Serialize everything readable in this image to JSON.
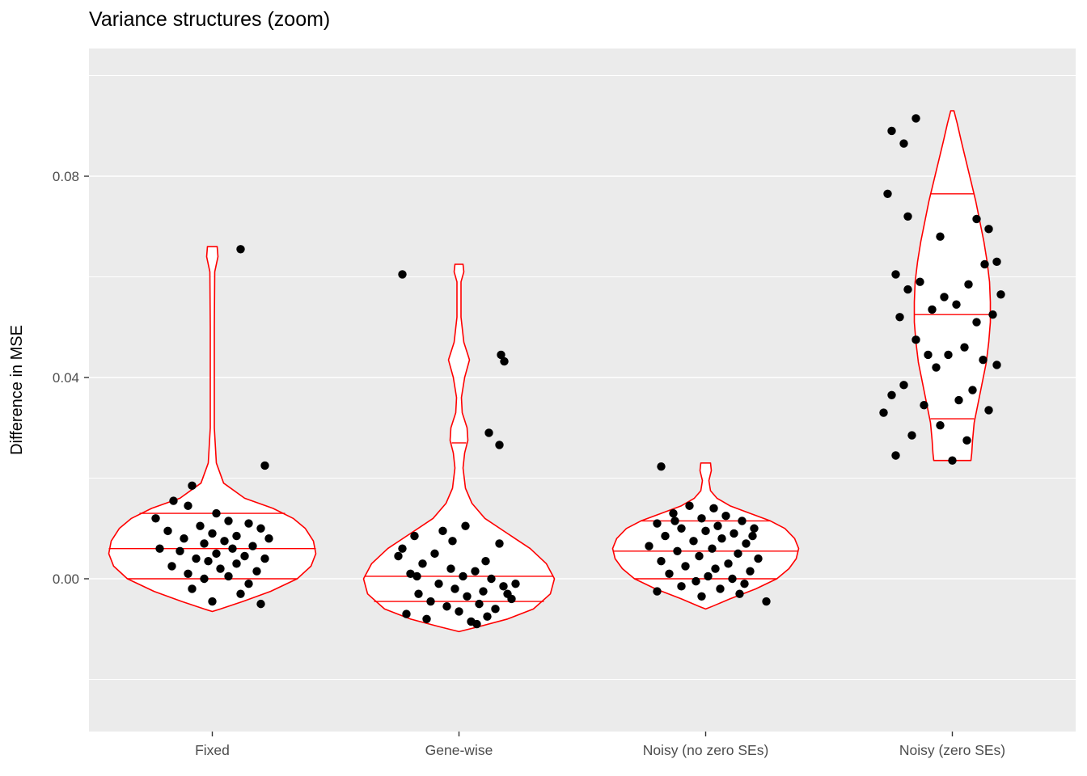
{
  "title": "Variance structures (zoom)",
  "colors": {
    "panel_bg": "#EBEBEB",
    "grid": "#FFFFFF",
    "violin_stroke": "#FF0000",
    "violin_fill": "#FFFFFF",
    "point": "#000000",
    "axis_text": "#4D4D4D",
    "tick_mark": "#333333",
    "title_text": "#000000"
  },
  "chart_data": {
    "type": "violin+jitter",
    "title": "Variance structures (zoom)",
    "xlabel": "",
    "ylabel": "Difference in MSE",
    "ylim": [
      -0.03,
      0.105
    ],
    "grid": true,
    "legend": "none",
    "categories": [
      "Fixed",
      "Gene-wise",
      "Noisy (no zero SEs)",
      "Noisy (zero SEs)"
    ],
    "y_major": [
      {
        "value": 0.0,
        "label": "0.00"
      },
      {
        "value": 0.04,
        "label": "0.04"
      },
      {
        "value": 0.08,
        "label": "0.08"
      }
    ],
    "y_minor": [
      -0.02,
      0.02,
      0.06,
      0.1
    ],
    "groups": [
      {
        "name": "Fixed",
        "slug": "fixed",
        "violin": [
          [
            0.066,
            6
          ],
          [
            0.064,
            7
          ],
          [
            0.061,
            3
          ],
          [
            0.05,
            2.5
          ],
          [
            0.03,
            2.5
          ],
          [
            0.023,
            5
          ],
          [
            0.019,
            14
          ],
          [
            0.016,
            40
          ],
          [
            0.014,
            75
          ],
          [
            0.012,
            100
          ],
          [
            0.01,
            115
          ],
          [
            0.0075,
            125
          ],
          [
            0.005,
            128
          ],
          [
            0.0025,
            122
          ],
          [
            0.0,
            105
          ],
          [
            -0.0025,
            72
          ],
          [
            -0.0045,
            38
          ],
          [
            -0.006,
            10
          ],
          [
            -0.0065,
            0
          ]
        ],
        "quantiles": [
          [
            0.013,
            90
          ],
          [
            0.006,
            128
          ],
          [
            0.0,
            105
          ]
        ],
        "points": [
          [
            35,
            0.0655
          ],
          [
            65,
            0.0225
          ],
          [
            -25,
            0.0185
          ],
          [
            -48,
            0.0155
          ],
          [
            -30,
            0.0145
          ],
          [
            5,
            0.013
          ],
          [
            -70,
            0.012
          ],
          [
            20,
            0.0115
          ],
          [
            45,
            0.011
          ],
          [
            -15,
            0.0105
          ],
          [
            60,
            0.01
          ],
          [
            -55,
            0.0095
          ],
          [
            0,
            0.009
          ],
          [
            30,
            0.0085
          ],
          [
            -35,
            0.008
          ],
          [
            70,
            0.008
          ],
          [
            15,
            0.0075
          ],
          [
            -10,
            0.007
          ],
          [
            50,
            0.0065
          ],
          [
            -65,
            0.006
          ],
          [
            25,
            0.006
          ],
          [
            -40,
            0.0055
          ],
          [
            5,
            0.005
          ],
          [
            40,
            0.0045
          ],
          [
            -20,
            0.004
          ],
          [
            65,
            0.004
          ],
          [
            -5,
            0.0035
          ],
          [
            30,
            0.003
          ],
          [
            -50,
            0.0025
          ],
          [
            10,
            0.002
          ],
          [
            55,
            0.0015
          ],
          [
            -30,
            0.001
          ],
          [
            20,
            0.0005
          ],
          [
            -10,
            0.0
          ],
          [
            45,
            -0.001
          ],
          [
            -25,
            -0.002
          ],
          [
            35,
            -0.003
          ],
          [
            0,
            -0.0045
          ],
          [
            60,
            -0.005
          ]
        ]
      },
      {
        "name": "Gene-wise",
        "slug": "gene-wise",
        "violin": [
          [
            0.0625,
            5
          ],
          [
            0.061,
            6
          ],
          [
            0.059,
            2.5
          ],
          [
            0.052,
            2.5
          ],
          [
            0.047,
            6
          ],
          [
            0.0435,
            13
          ],
          [
            0.04,
            7
          ],
          [
            0.036,
            3
          ],
          [
            0.033,
            4
          ],
          [
            0.03,
            10
          ],
          [
            0.0275,
            11
          ],
          [
            0.025,
            7
          ],
          [
            0.022,
            5
          ],
          [
            0.018,
            8
          ],
          [
            0.015,
            16
          ],
          [
            0.012,
            32
          ],
          [
            0.009,
            60
          ],
          [
            0.006,
            88
          ],
          [
            0.003,
            108
          ],
          [
            0.0,
            118
          ],
          [
            -0.003,
            113
          ],
          [
            -0.006,
            92
          ],
          [
            -0.008,
            60
          ],
          [
            -0.0095,
            25
          ],
          [
            -0.0105,
            0
          ]
        ],
        "quantiles": [
          [
            0.027,
            9
          ],
          [
            0.0005,
            117
          ],
          [
            -0.0045,
            105
          ]
        ],
        "points": [
          [
            -70,
            0.0605
          ],
          [
            52,
            0.0445
          ],
          [
            56,
            0.0432
          ],
          [
            37,
            0.029
          ],
          [
            50,
            0.0266
          ],
          [
            8,
            0.0105
          ],
          [
            -20,
            0.0095
          ],
          [
            -55,
            0.0085
          ],
          [
            -8,
            0.0075
          ],
          [
            -70,
            0.006
          ],
          [
            50,
            0.007
          ],
          [
            -30,
            0.005
          ],
          [
            -75,
            0.0045
          ],
          [
            33,
            0.0035
          ],
          [
            -45,
            0.003
          ],
          [
            -10,
            0.002
          ],
          [
            20,
            0.0015
          ],
          [
            -60,
            0.001
          ],
          [
            5,
            0.0005
          ],
          [
            40,
            0.0
          ],
          [
            -52,
            0.0005
          ],
          [
            -25,
            -0.001
          ],
          [
            70,
            -0.001
          ],
          [
            55,
            -0.0015
          ],
          [
            -5,
            -0.002
          ],
          [
            30,
            -0.0025
          ],
          [
            -50,
            -0.003
          ],
          [
            60,
            -0.003
          ],
          [
            10,
            -0.0035
          ],
          [
            65,
            -0.004
          ],
          [
            -35,
            -0.0045
          ],
          [
            25,
            -0.005
          ],
          [
            -15,
            -0.0055
          ],
          [
            45,
            -0.006
          ],
          [
            0,
            -0.0065
          ],
          [
            -65,
            -0.007
          ],
          [
            35,
            -0.0075
          ],
          [
            -40,
            -0.008
          ],
          [
            15,
            -0.0085
          ],
          [
            22,
            -0.009
          ]
        ]
      },
      {
        "name": "Noisy (no zero SEs)",
        "slug": "noisy-no-zero-ses",
        "violin": [
          [
            0.023,
            6
          ],
          [
            0.0215,
            7
          ],
          [
            0.0195,
            4
          ],
          [
            0.0175,
            6
          ],
          [
            0.016,
            14
          ],
          [
            0.0145,
            30
          ],
          [
            0.013,
            55
          ],
          [
            0.0115,
            80
          ],
          [
            0.01,
            98
          ],
          [
            0.008,
            110
          ],
          [
            0.006,
            115
          ],
          [
            0.004,
            112
          ],
          [
            0.002,
            103
          ],
          [
            0.0,
            88
          ],
          [
            -0.002,
            62
          ],
          [
            -0.004,
            30
          ],
          [
            -0.0055,
            8
          ],
          [
            -0.006,
            0
          ]
        ],
        "quantiles": [
          [
            0.0115,
            80
          ],
          [
            0.0055,
            115
          ],
          [
            0.0,
            88
          ]
        ],
        "points": [
          [
            -55,
            0.0223
          ],
          [
            -20,
            0.0145
          ],
          [
            10,
            0.014
          ],
          [
            -40,
            0.013
          ],
          [
            25,
            0.0125
          ],
          [
            -5,
            0.012
          ],
          [
            45,
            0.0115
          ],
          [
            -38,
            0.0115
          ],
          [
            -60,
            0.011
          ],
          [
            15,
            0.0105
          ],
          [
            -30,
            0.01
          ],
          [
            60,
            0.01
          ],
          [
            0,
            0.0095
          ],
          [
            35,
            0.009
          ],
          [
            -50,
            0.0085
          ],
          [
            58,
            0.0085
          ],
          [
            20,
            0.008
          ],
          [
            -15,
            0.0075
          ],
          [
            50,
            0.007
          ],
          [
            -70,
            0.0065
          ],
          [
            8,
            0.006
          ],
          [
            -35,
            0.0055
          ],
          [
            40,
            0.005
          ],
          [
            -8,
            0.0045
          ],
          [
            65,
            0.004
          ],
          [
            -55,
            0.0035
          ],
          [
            28,
            0.003
          ],
          [
            -25,
            0.0025
          ],
          [
            12,
            0.002
          ],
          [
            55,
            0.0015
          ],
          [
            -45,
            0.001
          ],
          [
            3,
            0.0005
          ],
          [
            33,
            0.0
          ],
          [
            -12,
            -0.0005
          ],
          [
            48,
            -0.001
          ],
          [
            -30,
            -0.0015
          ],
          [
            18,
            -0.002
          ],
          [
            -60,
            -0.0025
          ],
          [
            42,
            -0.003
          ],
          [
            -5,
            -0.0035
          ],
          [
            75,
            -0.0045
          ]
        ]
      },
      {
        "name": "Noisy (zero SEs)",
        "slug": "noisy-zero-ses",
        "violin": [
          [
            0.093,
            2
          ],
          [
            0.0905,
            6
          ],
          [
            0.087,
            11
          ],
          [
            0.083,
            17
          ],
          [
            0.079,
            23
          ],
          [
            0.075,
            29
          ],
          [
            0.071,
            34
          ],
          [
            0.067,
            39
          ],
          [
            0.063,
            43
          ],
          [
            0.059,
            46
          ],
          [
            0.055,
            47
          ],
          [
            0.051,
            47
          ],
          [
            0.047,
            45
          ],
          [
            0.043,
            42
          ],
          [
            0.039,
            37
          ],
          [
            0.035,
            32
          ],
          [
            0.031,
            27
          ],
          [
            0.0275,
            25
          ],
          [
            0.025,
            24
          ],
          [
            0.0235,
            23
          ]
        ],
        "quantiles": [
          [
            0.0765,
            27
          ],
          [
            0.0525,
            47
          ],
          [
            0.0318,
            27
          ]
        ],
        "points": [
          [
            -45,
            0.0915
          ],
          [
            -75,
            0.089
          ],
          [
            -60,
            0.0865
          ],
          [
            -80,
            0.0765
          ],
          [
            30,
            0.0715
          ],
          [
            -55,
            0.072
          ],
          [
            45,
            0.0695
          ],
          [
            -15,
            0.068
          ],
          [
            55,
            0.063
          ],
          [
            40,
            0.0625
          ],
          [
            -70,
            0.0605
          ],
          [
            -40,
            0.059
          ],
          [
            20,
            0.0585
          ],
          [
            -55,
            0.0575
          ],
          [
            60,
            0.0565
          ],
          [
            -10,
            0.056
          ],
          [
            5,
            0.0545
          ],
          [
            -25,
            0.0535
          ],
          [
            50,
            0.0525
          ],
          [
            -65,
            0.052
          ],
          [
            30,
            0.051
          ],
          [
            -45,
            0.0475
          ],
          [
            15,
            0.046
          ],
          [
            -5,
            0.0445
          ],
          [
            -30,
            0.0445
          ],
          [
            38,
            0.0435
          ],
          [
            55,
            0.0425
          ],
          [
            -20,
            0.042
          ],
          [
            -60,
            0.0385
          ],
          [
            25,
            0.0375
          ],
          [
            -75,
            0.0365
          ],
          [
            8,
            0.0355
          ],
          [
            -35,
            0.0345
          ],
          [
            45,
            0.0335
          ],
          [
            -85,
            0.033
          ],
          [
            -15,
            0.0305
          ],
          [
            -50,
            0.0285
          ],
          [
            18,
            0.0275
          ],
          [
            -70,
            0.0245
          ],
          [
            0,
            0.0235
          ]
        ]
      }
    ]
  }
}
